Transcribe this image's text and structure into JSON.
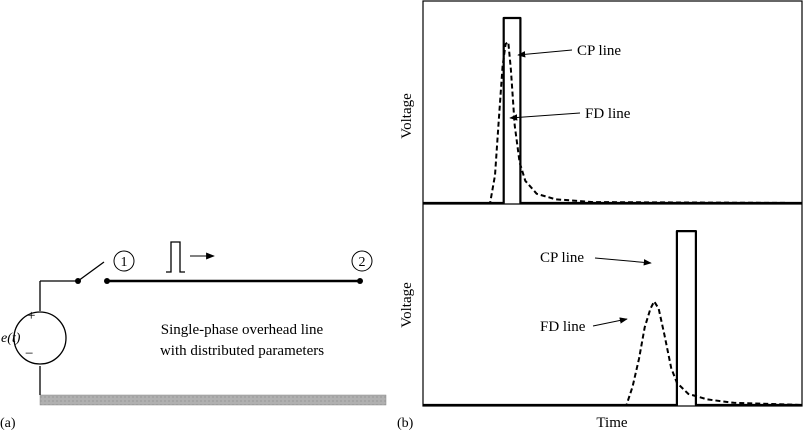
{
  "panel_a": {
    "label": "(a)",
    "source": {
      "symbol": "e(t)",
      "plus": "+",
      "minus": "−"
    },
    "node_1": "1",
    "node_2": "2",
    "line_caption": [
      "Single-phase overhead line",
      "with distributed parameters"
    ]
  },
  "panel_b": {
    "label": "(b)",
    "chart_data": [
      {
        "type": "line",
        "title": "",
        "xlabel": "",
        "ylabel": "Voltage",
        "x_range": [
          0,
          1
        ],
        "y_range": [
          0,
          1
        ],
        "grid": false,
        "series": [
          {
            "name": "CP line",
            "style": "solid",
            "points": [
              [
                0,
                0
              ],
              [
                0.213,
                0
              ],
              [
                0.213,
                1.0
              ],
              [
                0.257,
                1.0
              ],
              [
                0.257,
                0
              ],
              [
                1,
                0
              ]
            ]
          },
          {
            "name": "FD line",
            "style": "dashed",
            "points": [
              [
                0,
                0
              ],
              [
                0.177,
                0
              ],
              [
                0.19,
                0.15
              ],
              [
                0.2,
                0.45
              ],
              [
                0.21,
                0.74
              ],
              [
                0.218,
                0.86
              ],
              [
                0.225,
                0.87
              ],
              [
                0.232,
                0.72
              ],
              [
                0.242,
                0.42
              ],
              [
                0.255,
                0.22
              ],
              [
                0.27,
                0.12
              ],
              [
                0.3,
                0.05
              ],
              [
                0.35,
                0.02
              ],
              [
                0.45,
                0.005
              ],
              [
                1,
                0
              ]
            ]
          }
        ],
        "annotations": [
          "CP line",
          "FD line"
        ]
      },
      {
        "type": "line",
        "title": "",
        "xlabel": "Time",
        "ylabel": "Voltage",
        "x_range": [
          0,
          1
        ],
        "y_range": [
          0,
          1
        ],
        "grid": false,
        "series": [
          {
            "name": "CP line",
            "style": "solid",
            "points": [
              [
                0,
                0
              ],
              [
                0.67,
                0
              ],
              [
                0.67,
                0.94
              ],
              [
                0.72,
                0.94
              ],
              [
                0.72,
                0
              ],
              [
                1,
                0
              ]
            ]
          },
          {
            "name": "FD line",
            "style": "dashed",
            "points": [
              [
                0,
                0
              ],
              [
                0.537,
                0
              ],
              [
                0.553,
                0.1
              ],
              [
                0.57,
                0.25
              ],
              [
                0.585,
                0.42
              ],
              [
                0.6,
                0.52
              ],
              [
                0.61,
                0.56
              ],
              [
                0.622,
                0.52
              ],
              [
                0.637,
                0.38
              ],
              [
                0.655,
                0.2
              ],
              [
                0.67,
                0.12
              ],
              [
                0.7,
                0.06
              ],
              [
                0.75,
                0.03
              ],
              [
                0.82,
                0.012
              ],
              [
                1,
                0
              ]
            ]
          }
        ],
        "annotations": [
          "CP line",
          "FD line"
        ]
      }
    ]
  }
}
